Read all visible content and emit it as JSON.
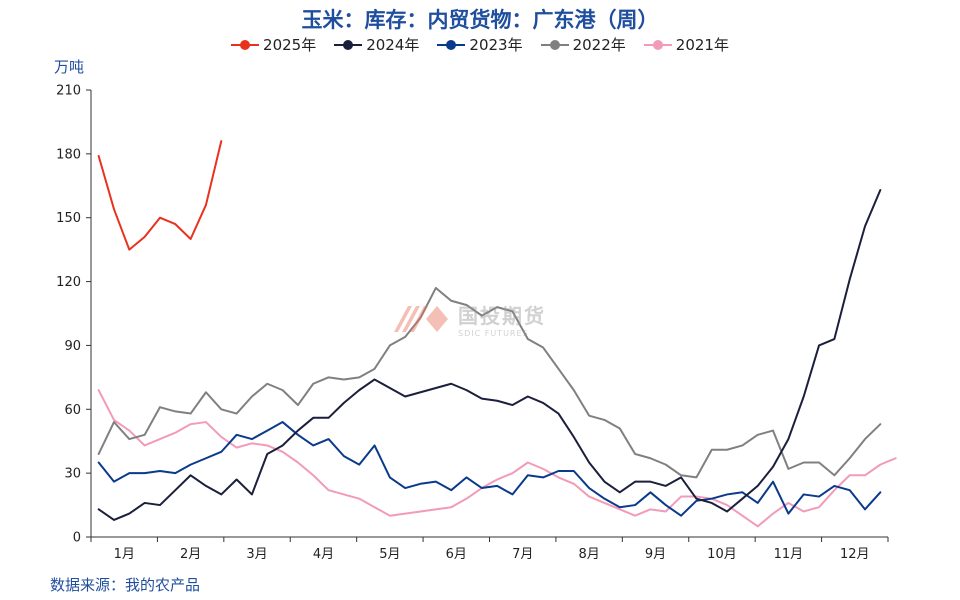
{
  "chart_data": {
    "type": "line",
    "title": "玉米：库存：内贸货物：广东港（周）",
    "ylabel": "万吨",
    "ylim": [
      0,
      210
    ],
    "yticks": [
      0,
      30,
      60,
      90,
      120,
      150,
      180,
      210
    ],
    "xticks": [
      "1月",
      "2月",
      "3月",
      "4月",
      "5月",
      "6月",
      "7月",
      "8月",
      "9月",
      "10月",
      "11月",
      "12月"
    ],
    "x_range_weeks": [
      0,
      52
    ],
    "legend_position": "top-center",
    "grid": false,
    "series": [
      {
        "name": "2025年",
        "color": "#e8321e",
        "values": [
          179,
          154,
          135,
          141,
          150,
          147,
          140,
          156,
          186
        ]
      },
      {
        "name": "2024年",
        "color": "#1b1f3b",
        "values": [
          13,
          8,
          11,
          16,
          15,
          22,
          29,
          24,
          20,
          27,
          20,
          39,
          43,
          50,
          56,
          56,
          63,
          69,
          74,
          70,
          66,
          68,
          70,
          72,
          69,
          65,
          64,
          62,
          66,
          63,
          58,
          47,
          35,
          26,
          21,
          26,
          26,
          24,
          28,
          18,
          16,
          12,
          18,
          24,
          33,
          46,
          66,
          90,
          93,
          121,
          146,
          163
        ]
      },
      {
        "name": "2023年",
        "color": "#0a3a8c",
        "values": [
          35,
          26,
          30,
          30,
          31,
          30,
          34,
          37,
          40,
          48,
          46,
          50,
          54,
          48,
          43,
          46,
          38,
          34,
          43,
          28,
          23,
          25,
          26,
          22,
          28,
          23,
          24,
          20,
          29,
          28,
          31,
          31,
          23,
          18,
          14,
          15,
          21,
          15,
          10,
          17,
          18,
          20,
          21,
          16,
          26,
          11,
          20,
          19,
          24,
          22,
          13,
          21
        ]
      },
      {
        "name": "2022年",
        "color": "#808080",
        "values": [
          39,
          54,
          46,
          48,
          61,
          59,
          58,
          68,
          60,
          58,
          66,
          72,
          69,
          62,
          72,
          75,
          74,
          75,
          79,
          90,
          94,
          103,
          117,
          111,
          109,
          104,
          108,
          106,
          93,
          89,
          79,
          69,
          57,
          55,
          51,
          39,
          37,
          34,
          29,
          28,
          41,
          41,
          43,
          48,
          50,
          32,
          35,
          35,
          29,
          37,
          46,
          53
        ]
      },
      {
        "name": "2021年",
        "color": "#f29bb9",
        "values": [
          69,
          55,
          50,
          43,
          46,
          49,
          53,
          54,
          47,
          42,
          44,
          43,
          40,
          35,
          29,
          22,
          20,
          18,
          14,
          10,
          11,
          12,
          13,
          14,
          18,
          23,
          27,
          30,
          35,
          32,
          28,
          25,
          19,
          16,
          13,
          10,
          13,
          12,
          19,
          19,
          18,
          15,
          10,
          5,
          11,
          16,
          12,
          14,
          22,
          29,
          29,
          34,
          37
        ]
      }
    ]
  },
  "source": "数据来源：我的农产品",
  "watermark": {
    "main": "国投期货",
    "sub": "SDIC FUTURES"
  }
}
